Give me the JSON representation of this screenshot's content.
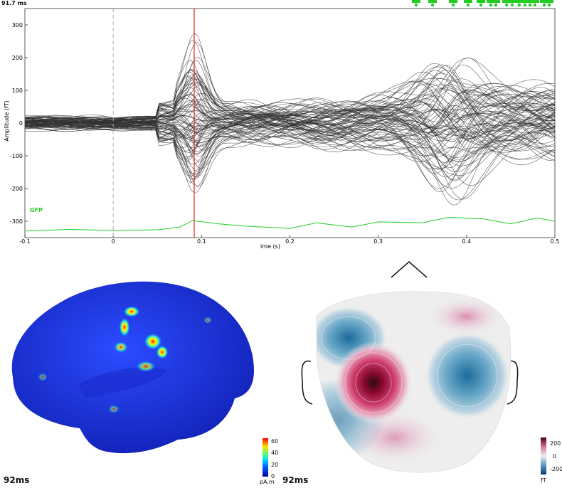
{
  "header": {
    "time_readout": "91.7 ms"
  },
  "chart_data": {
    "type": "line",
    "ylabel": "Amplitude (fT)",
    "xlabel": "ime (s)",
    "xlim": [
      -0.1,
      0.5
    ],
    "ylim": [
      -350,
      350
    ],
    "x_ticks": [
      "-0.1",
      "0",
      "0.1",
      "0.2",
      "0.3",
      "0.4",
      "0.5"
    ],
    "x_tick_values": [
      -0.1,
      0,
      0.1,
      0.2,
      0.3,
      0.4,
      0.5
    ],
    "y_ticks": [
      "300",
      "200",
      "100",
      "0",
      "-100",
      "-200",
      "-300"
    ],
    "y_tick_values": [
      300,
      200,
      100,
      0,
      -100,
      -200,
      -300
    ],
    "cursor_time": 0.0917,
    "zero_line": 0,
    "gfp_label": "GFP",
    "series_color": "#333333",
    "gfp_color": "#22cc22",
    "cursor_color": "#e02020",
    "gfp": {
      "x": [
        -0.1,
        -0.08,
        -0.05,
        0.0,
        0.05,
        0.075,
        0.09,
        0.12,
        0.15,
        0.2,
        0.23,
        0.27,
        0.3,
        0.35,
        0.38,
        0.42,
        0.45,
        0.48,
        0.5
      ],
      "y": [
        -330,
        -328,
        -325,
        -328,
        -326,
        -318,
        -298,
        -308,
        -315,
        -322,
        -305,
        -318,
        -302,
        -305,
        -288,
        -293,
        -308,
        -290,
        -300
      ]
    }
  },
  "source_panel": {
    "time_label": "92ms",
    "colorbar_ticks": [
      "60",
      "40",
      "20",
      "0"
    ],
    "colorbar_unit": "pA.m"
  },
  "topo_panel": {
    "time_label": "92ms",
    "colorbar_ticks": [
      "200",
      "0",
      "-200"
    ],
    "colorbar_unit": "fT"
  }
}
